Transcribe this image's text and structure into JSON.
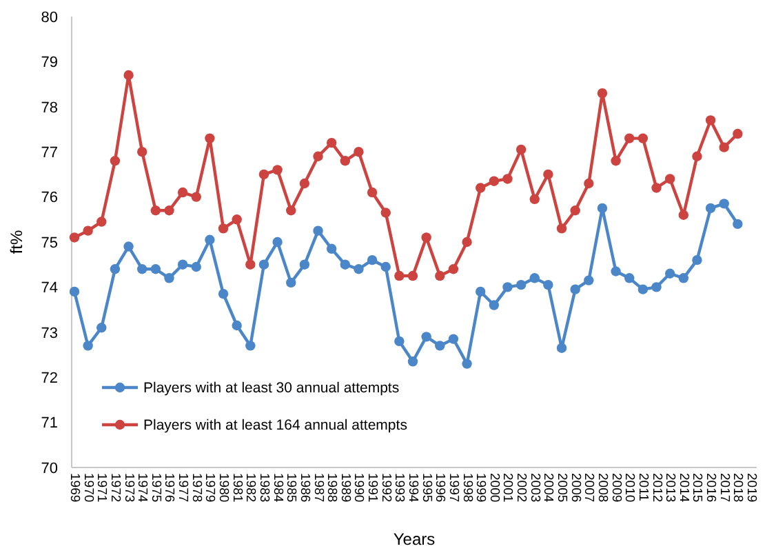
{
  "chart_data": {
    "type": "line",
    "xlabel": "Years",
    "ylabel": "ft%",
    "categories": [
      "1969",
      "1970",
      "1971",
      "1972",
      "1973",
      "1974",
      "1975",
      "1976",
      "1977",
      "1978",
      "1979",
      "1980",
      "1981",
      "1982",
      "1983",
      "1984",
      "1985",
      "1986",
      "1987",
      "1988",
      "1989",
      "1990",
      "1991",
      "1992",
      "1993",
      "1994",
      "1995",
      "1996",
      "1997",
      "1998",
      "1999",
      "2000",
      "2001",
      "2002",
      "2003",
      "2004",
      "2005",
      "2006",
      "2007",
      "2008",
      "2009",
      "2010",
      "2011",
      "2012",
      "2013",
      "2014",
      "2015",
      "2016",
      "2017",
      "2018",
      "2019"
    ],
    "series": [
      {
        "name": "Players with at least 30 annual attempts",
        "color": "#4a86c8",
        "values": [
          73.9,
          72.7,
          73.1,
          74.4,
          74.9,
          74.4,
          74.4,
          74.2,
          74.5,
          74.45,
          75.05,
          73.85,
          73.15,
          72.7,
          74.5,
          75.0,
          74.1,
          74.5,
          75.25,
          74.85,
          74.5,
          74.4,
          74.6,
          74.45,
          72.8,
          72.35,
          72.9,
          72.7,
          72.85,
          72.3,
          73.9,
          73.6,
          74.0,
          74.05,
          74.2,
          74.05,
          72.65,
          73.95,
          74.15,
          75.75,
          74.35,
          74.2,
          73.95,
          74.0,
          74.3,
          74.2,
          74.6,
          75.75,
          75.85,
          75.4,
          null
        ]
      },
      {
        "name": "Players with at least 164 annual attempts",
        "color": "#cc4340",
        "values": [
          75.1,
          75.25,
          75.45,
          76.8,
          78.7,
          77.0,
          75.7,
          75.7,
          76.1,
          76.0,
          77.3,
          75.3,
          75.5,
          74.5,
          76.5,
          76.6,
          75.7,
          76.3,
          76.9,
          77.2,
          76.8,
          77.0,
          76.1,
          75.65,
          74.25,
          74.25,
          75.1,
          74.25,
          74.4,
          75.0,
          76.2,
          76.35,
          76.4,
          77.05,
          75.95,
          76.5,
          75.3,
          75.7,
          76.3,
          78.3,
          76.8,
          77.3,
          77.3,
          76.2,
          76.4,
          75.6,
          76.9,
          77.7,
          77.1,
          77.4,
          null
        ]
      }
    ],
    "ylim": [
      70,
      80
    ],
    "yticks": [
      70,
      71,
      72,
      73,
      74,
      75,
      76,
      77,
      78,
      79,
      80
    ],
    "grid": false,
    "legend": "bottom left",
    "marker": "circle",
    "line_style": "solid"
  }
}
